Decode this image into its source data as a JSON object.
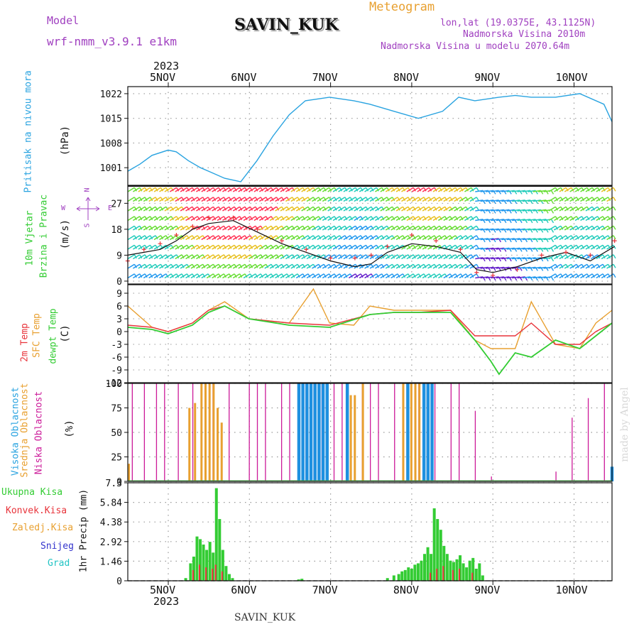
{
  "header": {
    "model_label": "Model",
    "model_value": "wrf-nmm_v3.9.1 e1km",
    "station": "SAVIN_KUK",
    "product": "Meteogram",
    "coords": "lon,lat (19.0375E, 43.1125N)",
    "elevation": "Nadmorska Visina 2010m",
    "model_elevation": "Nadmorska Visina u modelu 2070.64m",
    "footer_station": "SAVIN_KUK",
    "watermark": "made by Angel"
  },
  "colors": {
    "pressure": "#29a3e0",
    "red": "#e8333a",
    "orange": "#e8a030",
    "green": "#33cc33",
    "magenta": "#cc1a99",
    "purple": "#a040c0",
    "sky": "#1e90e0",
    "blue": "#3333cc",
    "cyan": "#22c4c4",
    "grid": "#999999"
  },
  "chart_data": [
    {
      "id": "pressure",
      "type": "line",
      "ylabel": "(hPa)",
      "side_label": "Pritisak na nivou mora",
      "ylim": [
        996,
        1024
      ],
      "yticks": [
        "1001",
        "1008",
        "1015",
        "1022"
      ],
      "x_top_year": "2023",
      "x_categories": [
        "5NOV",
        "6NOV",
        "7NOV",
        "8NOV",
        "9NOV",
        "10NOV"
      ],
      "series": [
        {
          "x": [
            0.0,
            0.15,
            0.3,
            0.5,
            0.6,
            0.75,
            0.9,
            1.0,
            1.2,
            1.4,
            1.6,
            1.8,
            2.0,
            2.2,
            2.5,
            2.8,
            3.0,
            3.3,
            3.6,
            3.9,
            4.1,
            4.3,
            4.6,
            4.8,
            5.0,
            5.3,
            5.6,
            5.9,
            6.0
          ],
          "y": [
            1000,
            1002,
            1004.5,
            1006,
            1005.5,
            1003,
            1001,
            1000,
            998,
            997,
            1003,
            1010,
            1016,
            1020,
            1021,
            1020,
            1019,
            1017,
            1015,
            1017,
            1021,
            1020,
            1021,
            1021.5,
            1021,
            1021,
            1022,
            1019,
            1014
          ]
        }
      ]
    },
    {
      "id": "wind",
      "type": "line",
      "ylabel": "(m/s)",
      "side_label_1": "10m Vjetar",
      "side_label_2": "Brzina i Pravac",
      "ylim": [
        -1,
        33
      ],
      "yticks": [
        "0",
        "9",
        "18",
        "27"
      ],
      "compass": {
        "n": "N",
        "s": "S",
        "e": "E",
        "w": "W"
      },
      "series": [
        {
          "name": "speed",
          "x": [
            0.0,
            0.2,
            0.4,
            0.6,
            0.8,
            1.0,
            1.3,
            1.6,
            1.9,
            2.2,
            2.5,
            2.8,
            3.0,
            3.2,
            3.5,
            3.8,
            4.1,
            4.3,
            4.5,
            4.8,
            5.1,
            5.4,
            5.7,
            6.0
          ],
          "y": [
            9,
            10,
            11,
            14,
            18,
            20,
            21,
            17,
            13,
            10,
            7,
            5,
            6,
            10,
            13,
            12,
            10,
            4,
            3,
            5,
            8,
            10,
            7,
            12
          ]
        },
        {
          "name": "gust",
          "x": [
            0.0,
            0.2,
            0.4,
            0.6,
            0.8,
            1.0,
            1.3,
            1.6,
            1.9,
            2.2,
            2.5,
            2.8,
            3.0,
            3.2,
            3.5,
            3.8,
            4.1,
            4.3,
            4.5,
            4.8,
            5.1,
            5.4,
            5.7,
            6.0
          ],
          "y": [
            7,
            11,
            13,
            16,
            19,
            22,
            22,
            18,
            14,
            11,
            8,
            8,
            9,
            12,
            16,
            14,
            11,
            3,
            2,
            4,
            9,
            10,
            9,
            14
          ]
        }
      ]
    },
    {
      "id": "temperature",
      "type": "line",
      "ylabel": "(C)",
      "side_label_1": "2m Temp",
      "side_label_2": "SFC Temp",
      "side_label_3": "dewpt Temp",
      "ylim": [
        -12,
        11
      ],
      "yticks": [
        "-12",
        "-9",
        "-6",
        "-3",
        "0",
        "3",
        "6",
        "9"
      ],
      "series": [
        {
          "name": "2m Temp",
          "x": [
            0.0,
            0.3,
            0.5,
            0.8,
            1.0,
            1.2,
            1.5,
            2.0,
            2.5,
            3.0,
            3.3,
            3.6,
            4.0,
            4.3,
            4.5,
            4.8,
            5.0,
            5.3,
            5.6,
            5.8,
            6.0
          ],
          "y": [
            1.5,
            1,
            0,
            2,
            5,
            6,
            3,
            2,
            1.5,
            4,
            4.5,
            4.5,
            5,
            -1,
            -1,
            -1,
            2,
            -3,
            -3,
            0,
            2
          ]
        },
        {
          "name": "SFC Temp",
          "x": [
            0.0,
            0.3,
            0.5,
            0.8,
            1.0,
            1.2,
            1.5,
            2.0,
            2.3,
            2.5,
            2.8,
            3.0,
            3.3,
            3.6,
            4.0,
            4.3,
            4.5,
            4.8,
            5.0,
            5.3,
            5.6,
            5.8,
            6.0
          ],
          "y": [
            6,
            1,
            0,
            2,
            5,
            7,
            3,
            2,
            10,
            2,
            1.5,
            6,
            5,
            5,
            5,
            -2,
            -4,
            -4,
            7,
            -3,
            -4,
            2,
            5
          ]
        },
        {
          "name": "dewpt Temp",
          "x": [
            0.0,
            0.3,
            0.5,
            0.8,
            1.0,
            1.2,
            1.5,
            2.0,
            2.5,
            3.0,
            3.3,
            3.6,
            4.0,
            4.3,
            4.5,
            4.6,
            4.8,
            5.0,
            5.3,
            5.6,
            5.8,
            6.0
          ],
          "y": [
            1,
            0.5,
            -0.5,
            1.5,
            4.5,
            6,
            3,
            1.5,
            1,
            4,
            4.5,
            4.5,
            4.5,
            -2,
            -7,
            -10,
            -5,
            -6,
            -2,
            -4,
            -1,
            2
          ]
        }
      ]
    },
    {
      "id": "clouds",
      "type": "bar",
      "ylabel": "(%)",
      "side_label_1": "Visoka Oblacnost",
      "side_label_2": "Srednja Oblacnost",
      "side_label_3": "Niska Oblacnost",
      "ylim": [
        0,
        100
      ],
      "yticks": [
        "0",
        "25",
        "50",
        "75",
        "100"
      ],
      "series": [
        {
          "name": "Niska Oblacnost",
          "x": [
            0.05,
            0.2,
            0.35,
            0.45,
            0.62,
            0.8,
            0.95,
            1.05,
            1.25,
            1.5,
            1.6,
            1.7,
            1.9,
            2.0,
            2.2,
            2.3,
            2.4,
            2.55,
            2.65,
            2.9,
            3.0,
            3.1,
            3.3,
            3.4,
            3.6,
            3.7,
            3.8,
            4.0,
            4.1,
            4.3,
            4.5,
            5.3,
            5.5,
            5.7,
            5.9
          ],
          "y": [
            100,
            100,
            100,
            100,
            100,
            100,
            100,
            100,
            100,
            100,
            100,
            100,
            100,
            100,
            100,
            100,
            100,
            100,
            100,
            100,
            100,
            100,
            100,
            100,
            100,
            100,
            100,
            100,
            100,
            72,
            5,
            10,
            65,
            85,
            100
          ]
        },
        {
          "name": "Srednja Oblacnost",
          "x": [
            0.0,
            0.75,
            0.82,
            0.9,
            0.95,
            1.0,
            1.05,
            1.1,
            1.15,
            2.75,
            2.8,
            2.9,
            3.4,
            3.5,
            3.55,
            3.6,
            3.7
          ],
          "y": [
            18,
            75,
            80,
            100,
            100,
            100,
            100,
            75,
            60,
            88,
            88,
            100,
            100,
            100,
            100,
            100,
            100
          ]
        },
        {
          "name": "Visoka Oblacnost",
          "x": [
            2.1,
            2.15,
            2.2,
            2.25,
            2.3,
            2.35,
            2.4,
            2.45,
            2.7,
            3.45,
            3.65,
            3.7,
            3.75,
            5.98
          ],
          "y": [
            100,
            100,
            100,
            100,
            100,
            100,
            100,
            100,
            100,
            100,
            100,
            100,
            100,
            15
          ]
        }
      ]
    },
    {
      "id": "precip",
      "type": "bar",
      "ylabel": "1hr Precip (mm)",
      "side_label_1": "Ukupna Kisa",
      "side_label_2": "Konvek.Kisa",
      "side_label_3": "Zaledj.Kisa",
      "side_label_4": "Snijeg",
      "side_label_5": "Grad",
      "ylim": [
        0,
        7.3
      ],
      "yticks": [
        "0",
        "1.46",
        "2.92",
        "4.38",
        "5.84",
        "7.3"
      ],
      "x_bottom_year": "2023",
      "x_categories": [
        "5NOV",
        "6NOV",
        "7NOV",
        "8NOV",
        "9NOV",
        "10NOV"
      ],
      "series": [
        {
          "name": "Ukupna Kisa",
          "x": [
            0.7,
            0.76,
            0.8,
            0.84,
            0.88,
            0.92,
            0.96,
            1.0,
            1.04,
            1.08,
            1.12,
            1.16,
            1.2,
            1.24,
            1.28,
            2.1,
            2.14,
            3.2,
            3.28,
            3.34,
            3.38,
            3.42,
            3.46,
            3.5,
            3.54,
            3.58,
            3.62,
            3.66,
            3.7,
            3.74,
            3.78,
            3.82,
            3.86,
            3.9,
            3.94,
            3.98,
            4.02,
            4.06,
            4.1,
            4.14,
            4.18,
            4.22,
            4.26,
            4.3,
            4.34,
            4.38
          ],
          "y": [
            0.2,
            1.3,
            1.8,
            3.3,
            3.1,
            2.7,
            2.3,
            2.9,
            2.1,
            6.9,
            4.6,
            2.3,
            1.1,
            0.5,
            0.2,
            0.1,
            0.15,
            0.2,
            0.4,
            0.5,
            0.7,
            0.8,
            1.0,
            0.9,
            1.2,
            1.3,
            1.5,
            2.0,
            2.5,
            2.0,
            5.4,
            4.6,
            3.8,
            2.6,
            2.0,
            1.5,
            1.4,
            1.6,
            1.9,
            1.3,
            1.0,
            1.5,
            1.7,
            0.9,
            1.3,
            0.4
          ]
        },
        {
          "name": "Konvek.Kisa",
          "x": [
            0.8,
            0.88,
            0.96,
            1.04,
            1.08,
            1.16,
            3.74,
            3.82,
            3.9,
            4.02,
            4.1,
            4.26
          ],
          "y": [
            0.8,
            1.2,
            1.0,
            0.9,
            1.2,
            0.7,
            0.6,
            0.9,
            1.1,
            0.8,
            0.9,
            0.6
          ]
        }
      ]
    }
  ]
}
